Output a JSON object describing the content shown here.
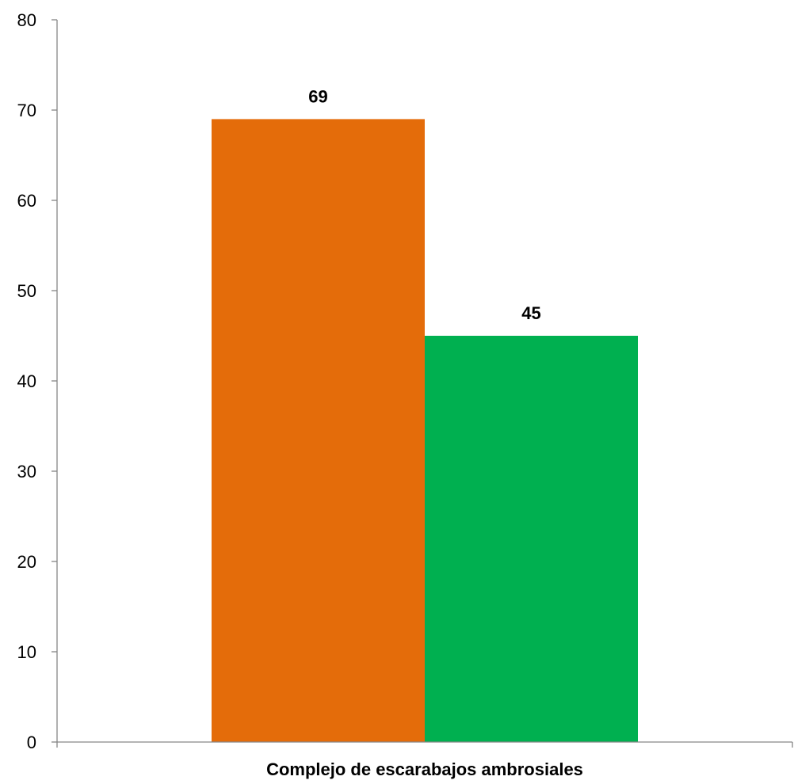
{
  "chart_data": {
    "type": "bar",
    "categories": [
      "Complejo de escarabajos ambrosiales"
    ],
    "series": [
      {
        "values": [
          69
        ],
        "color": "#E46C0A"
      },
      {
        "values": [
          45
        ],
        "color": "#00B050"
      }
    ],
    "data_labels": [
      "69",
      "45"
    ],
    "title": "",
    "xlabel": "",
    "ylabel": "",
    "ylim": [
      0,
      80
    ],
    "yticks": [
      0,
      10,
      20,
      30,
      40,
      50,
      60,
      70,
      80
    ],
    "grid": false,
    "legend": "none"
  }
}
